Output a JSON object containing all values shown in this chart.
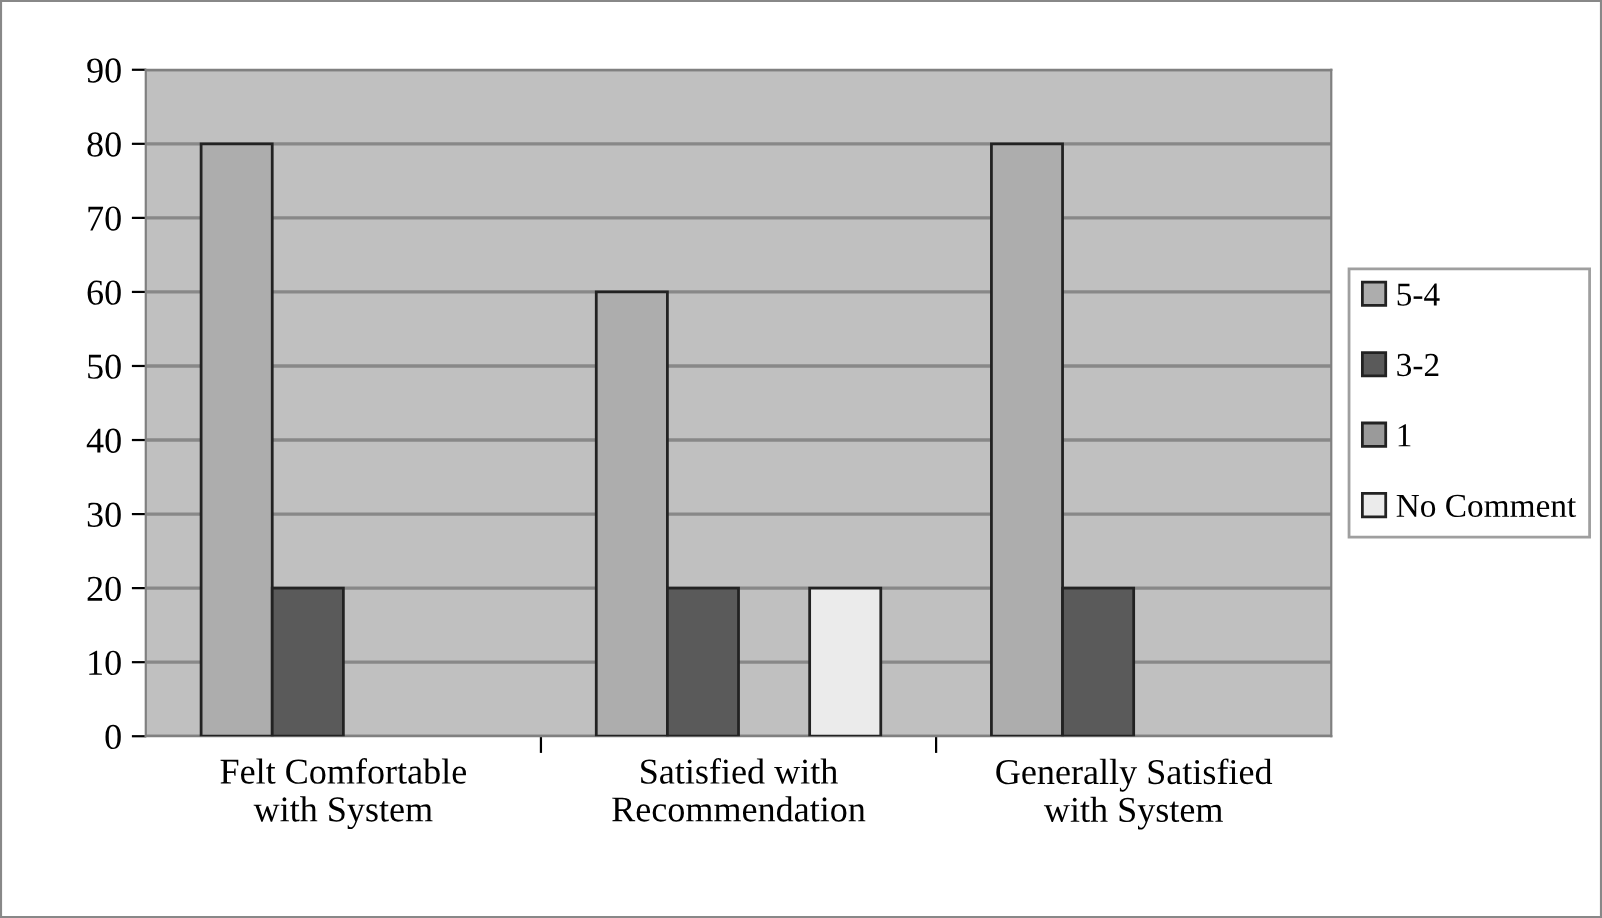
{
  "chart_data": {
    "type": "bar",
    "categories": [
      "Felt Comfortable\nwith System",
      "Satisfied with\nRecommendation",
      "Generally Satisfied\nwith System"
    ],
    "series": [
      {
        "name": "5-4",
        "color": "#adadad",
        "values": [
          80,
          60,
          80
        ]
      },
      {
        "name": "3-2",
        "color": "#5a5a5a",
        "values": [
          20,
          20,
          20
        ]
      },
      {
        "name": "1",
        "color": "#9a9a9a",
        "values": [
          null,
          null,
          null
        ]
      },
      {
        "name": "No Comment",
        "color": "#ebebeb",
        "values": [
          null,
          20,
          null
        ]
      }
    ],
    "ylim": [
      0,
      90
    ],
    "yticks": [
      0,
      10,
      20,
      30,
      40,
      50,
      60,
      70,
      80,
      90
    ],
    "grid": "y",
    "legend": "right"
  }
}
